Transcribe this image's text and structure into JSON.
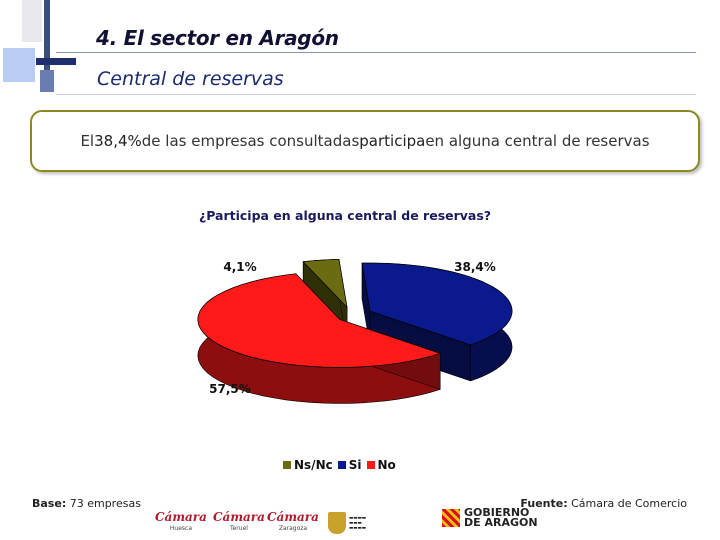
{
  "header": {
    "title": "4. El sector en Aragón",
    "subtitle": "Central de reservas"
  },
  "callout": {
    "pre": "El ",
    "pct": "38,4%",
    "mid": " de las empresas consultadas ",
    "verb": "participa",
    "post": " en alguna central de reservas"
  },
  "chart_data": {
    "type": "pie",
    "title": "¿Participa en alguna central de reservas?",
    "series": [
      {
        "name": "Ns/Nc",
        "value": 4.1,
        "label": "4,1%",
        "color": "#6b6b12"
      },
      {
        "name": "Si",
        "value": 38.4,
        "label": "38,4%",
        "color": "#0a1a8c"
      },
      {
        "name": "No",
        "value": 57.5,
        "label": "57,5%",
        "color": "#ff1a1a"
      }
    ],
    "legend": [
      "Ns/Nc",
      "Si",
      "No"
    ],
    "legend_position": "bottom",
    "style": "3d-exploded"
  },
  "footer": {
    "base_label": "Base:",
    "base_value": " 73 empresas",
    "source_label": "Fuente:",
    "source_value": " Cámara de Comercio"
  },
  "logos": {
    "camara": "Cámara",
    "camara_huesca": "Huesca",
    "camara_teruel": "Teruel",
    "camara_zaragoza": "Zaragoza",
    "gobierno_line1": "GOBIERNO",
    "gobierno_line2": "DE ARAGON"
  }
}
